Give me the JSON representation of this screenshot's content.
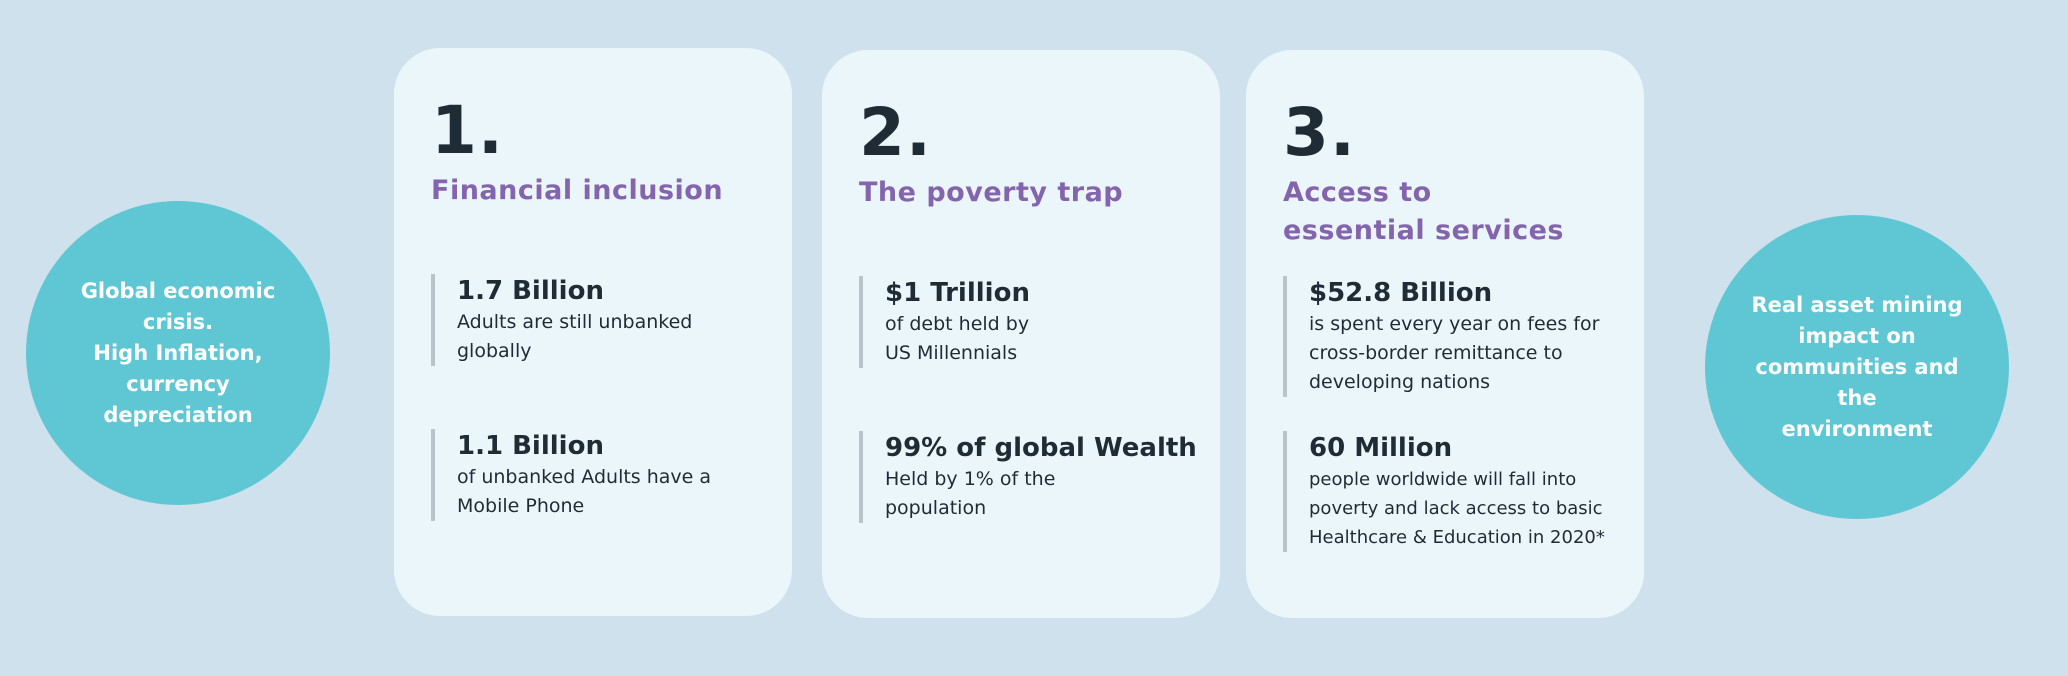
{
  "left_circle": {
    "text": "Global economic\ncrisis.\nHigh Inflation,\ncurrency\ndepreciation"
  },
  "right_circle": {
    "text": "Real asset  mining\nimpact on\ncommunities and the\nenvironment"
  },
  "cards": [
    {
      "number": "1.",
      "heading": "Financial inclusion",
      "stats": [
        {
          "value": "1.7 Billion",
          "desc": "Adults are still unbanked globally"
        },
        {
          "value": "1.1 Billion",
          "desc": "of unbanked Adults have a Mobile Phone"
        }
      ]
    },
    {
      "number": "2.",
      "heading": "The poverty trap",
      "stats": [
        {
          "value": "$1 Trillion",
          "desc": "of debt held by US Millennials"
        },
        {
          "value": "99% of global Wealth",
          "desc": "Held by 1% of the population"
        }
      ]
    },
    {
      "number": "3.",
      "heading": "Access to essential services",
      "stats": [
        {
          "value": "$52.8 Billion",
          "desc": "is spent every year on fees for cross-border remittance to developing nations"
        },
        {
          "value": "60 Million",
          "desc": "people worldwide will fall into poverty and lack access to basic Healthcare & Education in 2020*"
        }
      ]
    }
  ],
  "colors": {
    "background": "#cfe1ec",
    "card": "#ebf6fb",
    "circle": "#5fc7d3",
    "heading": "#8364ad",
    "text": "#1f2b35"
  }
}
